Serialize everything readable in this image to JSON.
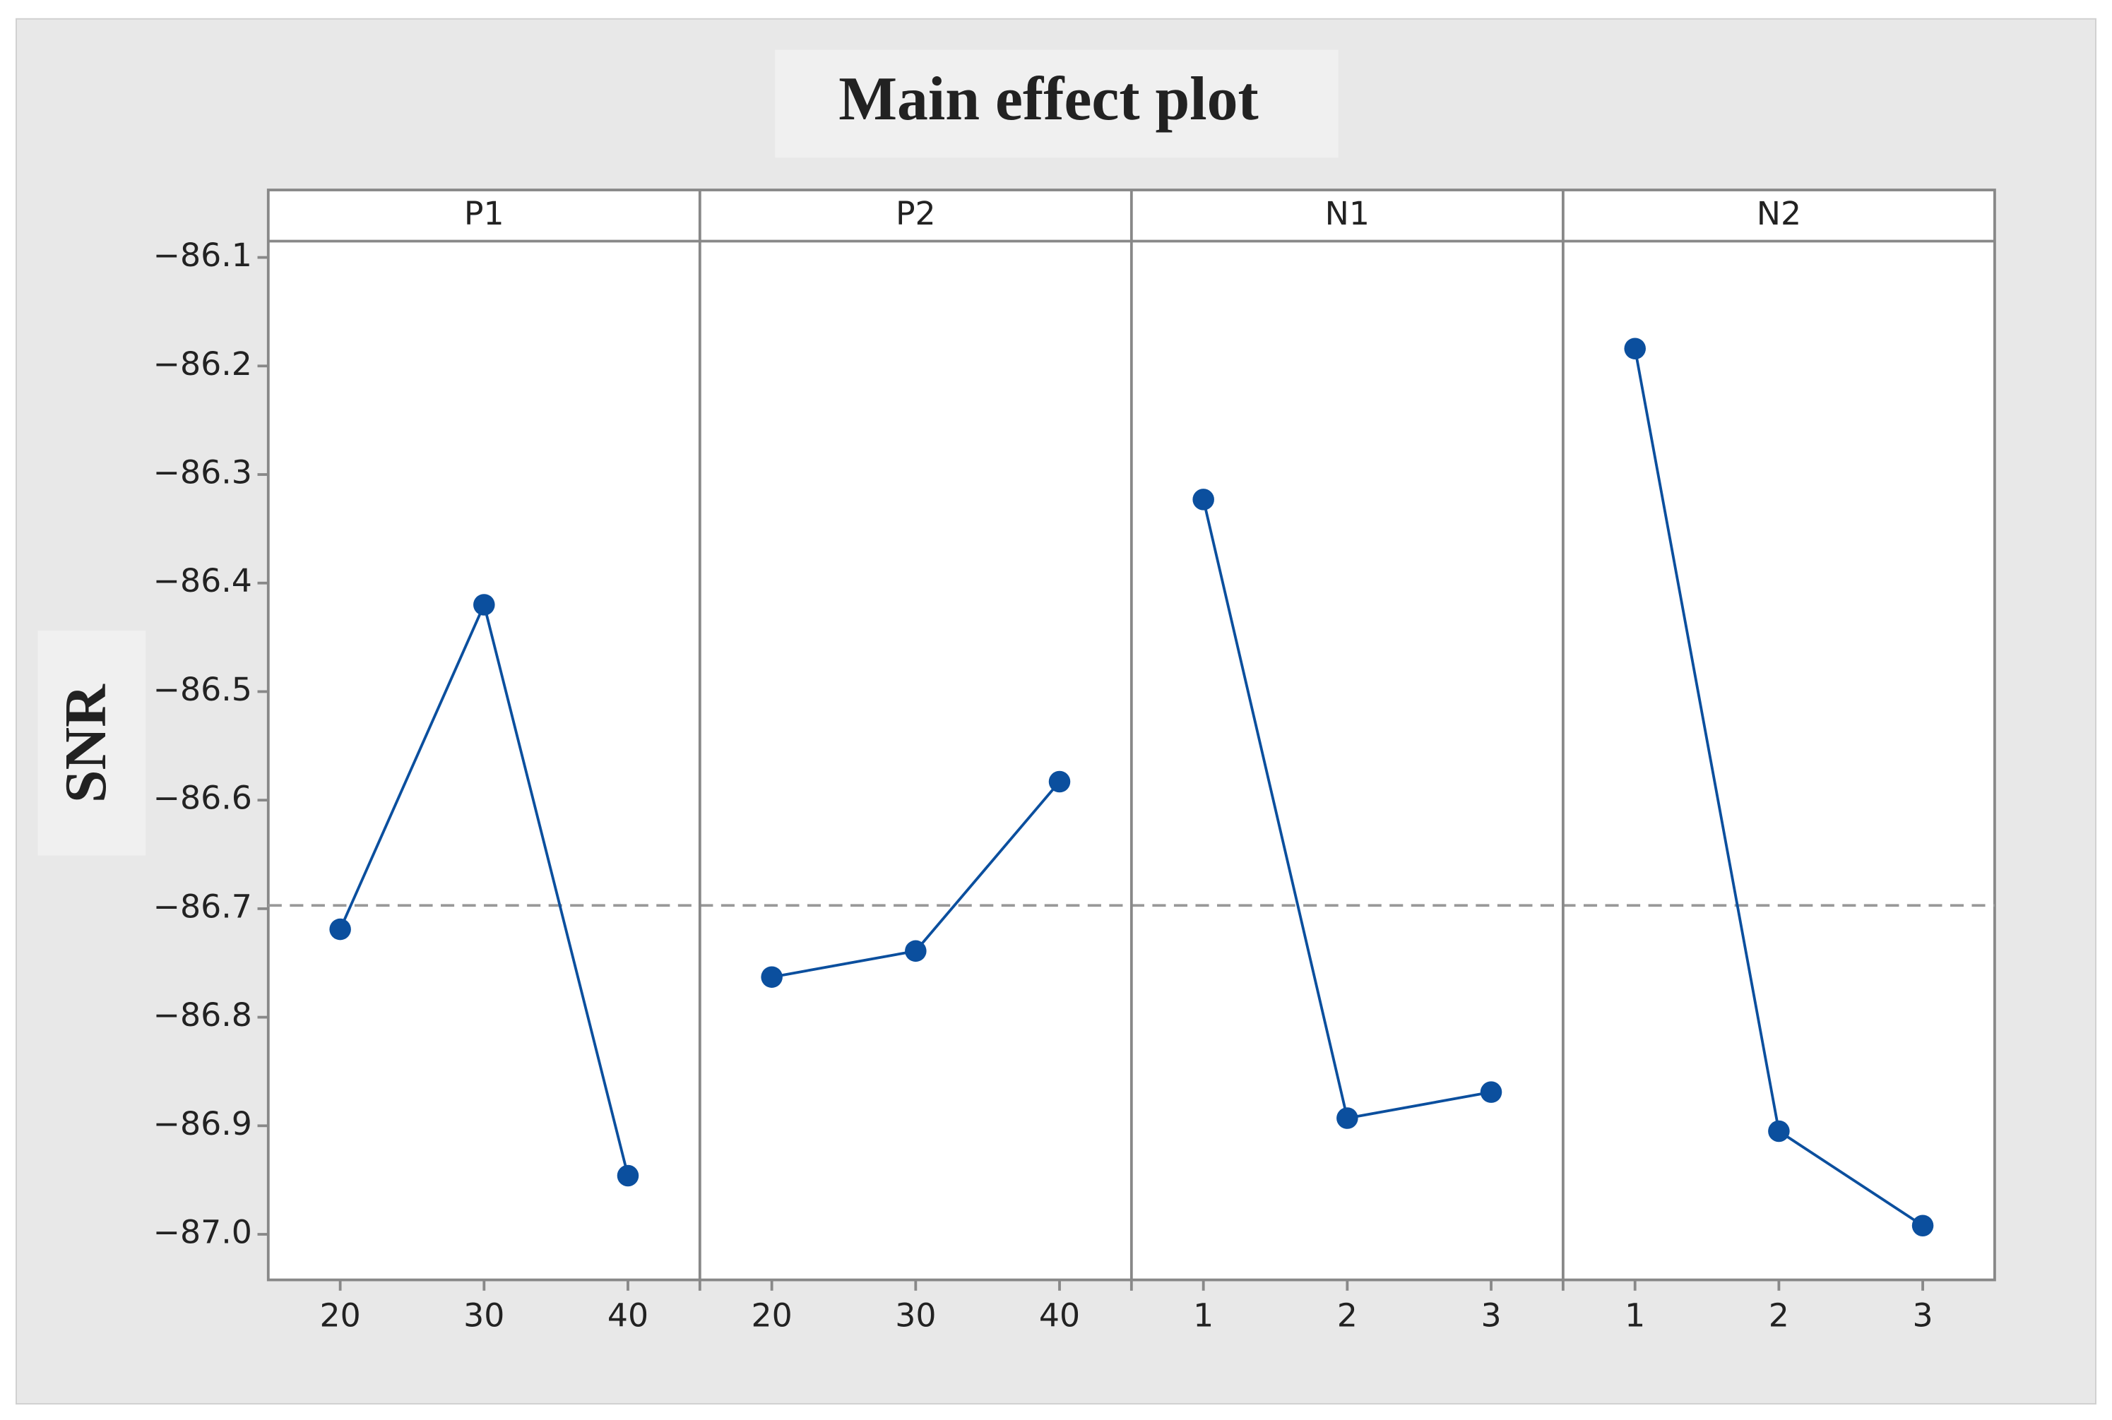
{
  "chart_data": {
    "type": "line",
    "title": "Main effect plot",
    "ylabel": "SNR",
    "color": "#0b4f9e",
    "ylim": [
      -87.042,
      -86.085
    ],
    "yticks": [
      {
        "value": -86.1,
        "label": "−86.1"
      },
      {
        "value": -86.2,
        "label": "−86.2"
      },
      {
        "value": -86.3,
        "label": "−86.3"
      },
      {
        "value": -86.4,
        "label": "−86.4"
      },
      {
        "value": -86.5,
        "label": "−86.5"
      },
      {
        "value": -86.6,
        "label": "−86.6"
      },
      {
        "value": -86.7,
        "label": "−86.7"
      },
      {
        "value": -86.8,
        "label": "−86.8"
      },
      {
        "value": -86.9,
        "label": "−86.9"
      },
      {
        "value": -87.0,
        "label": "−87.0"
      }
    ],
    "mean_line": -86.697,
    "panels": [
      {
        "name": "P1",
        "categories": [
          "20",
          "30",
          "40"
        ],
        "values": [
          -86.719,
          -86.42,
          -86.946
        ]
      },
      {
        "name": "P2",
        "categories": [
          "20",
          "30",
          "40"
        ],
        "values": [
          -86.763,
          -86.739,
          -86.583
        ]
      },
      {
        "name": "N1",
        "categories": [
          "1",
          "2",
          "3"
        ],
        "values": [
          -86.323,
          -86.893,
          -86.869
        ]
      },
      {
        "name": "N2",
        "categories": [
          "1",
          "2",
          "3"
        ],
        "values": [
          -86.184,
          -86.905,
          -86.992
        ]
      }
    ]
  }
}
